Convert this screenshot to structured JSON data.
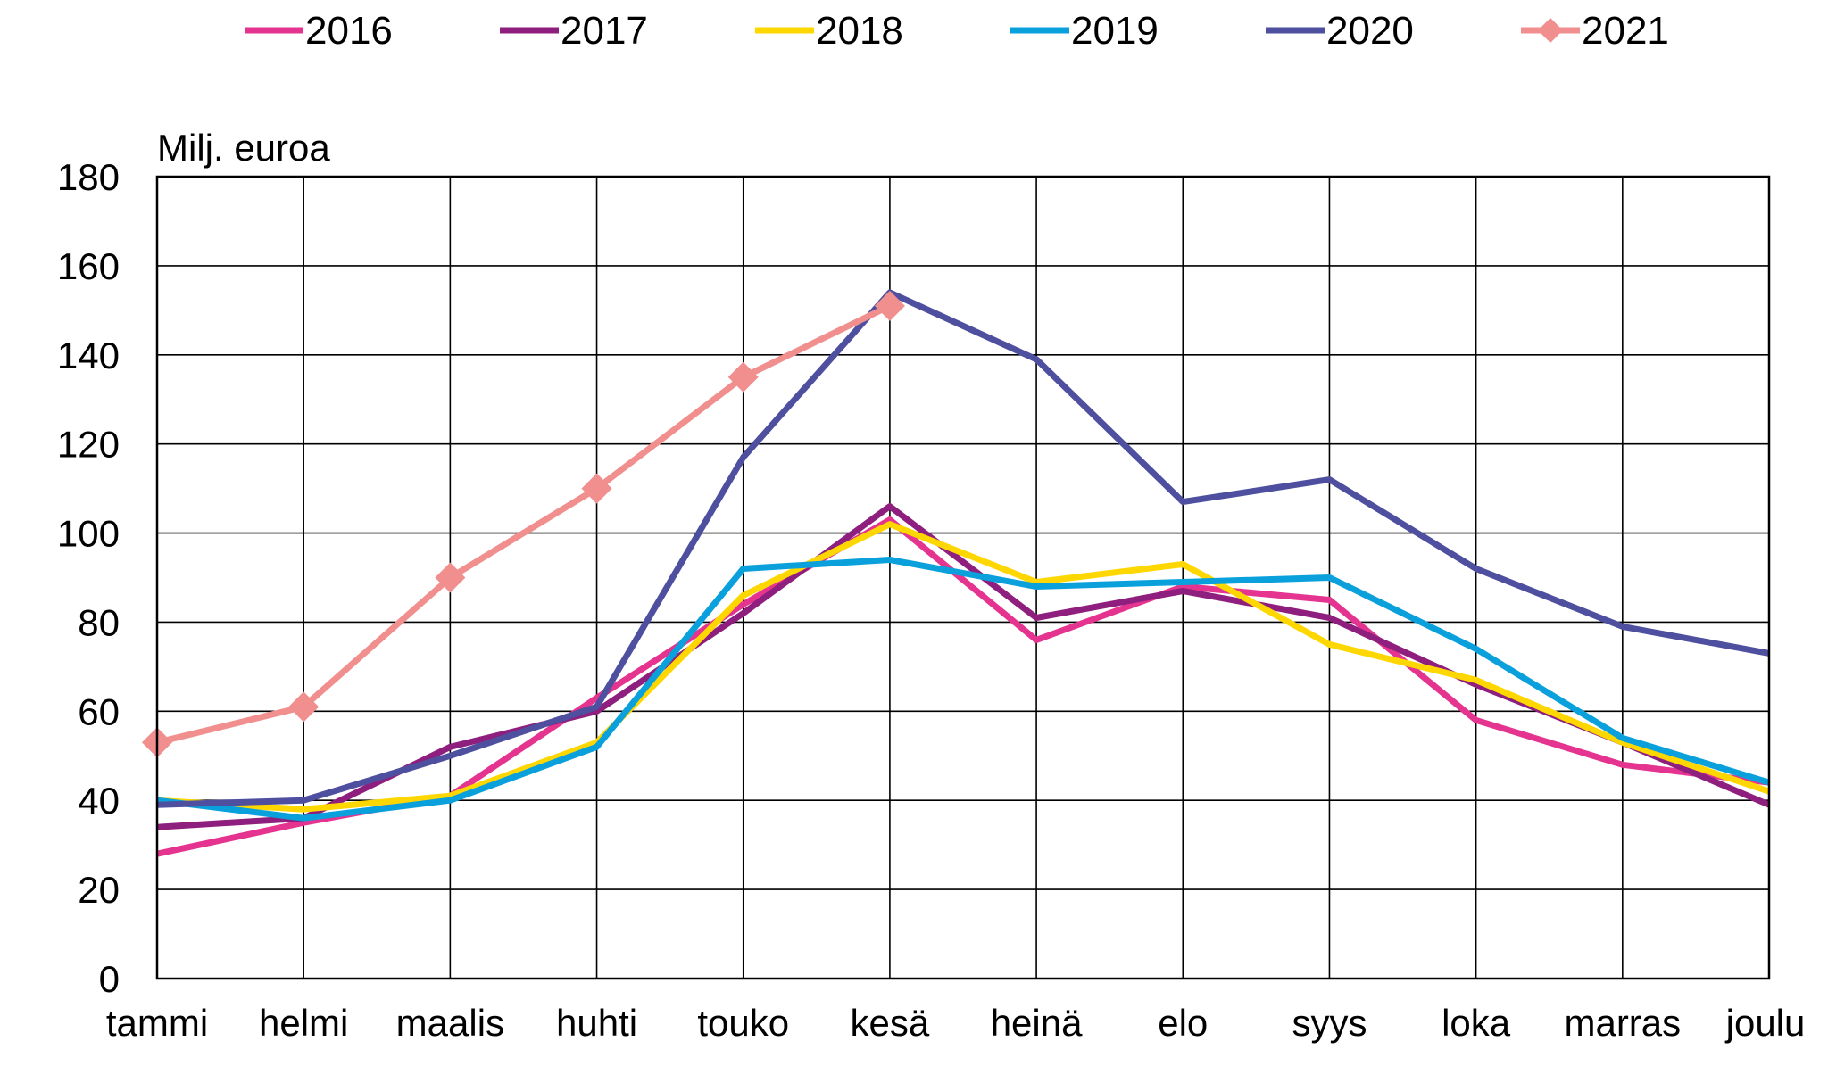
{
  "chart_data": {
    "type": "line",
    "ylabel": "Milj. euroa",
    "ylim": [
      0,
      180
    ],
    "ytick_step": 20,
    "grid": true,
    "legend_position": "top",
    "categories": [
      "tammi",
      "helmi",
      "maalis",
      "huhti",
      "touko",
      "kesä",
      "heinä",
      "elo",
      "syys",
      "loka",
      "marras",
      "joulu"
    ],
    "series": [
      {
        "name": "2016",
        "color": "#e5348f",
        "marker": "none",
        "values": [
          28,
          35,
          41,
          63,
          84,
          103,
          76,
          88,
          85,
          58,
          48,
          44
        ]
      },
      {
        "name": "2017",
        "color": "#8e1f7e",
        "marker": "none",
        "values": [
          34,
          36,
          52,
          60,
          82,
          106,
          81,
          87,
          81,
          66,
          53,
          39
        ]
      },
      {
        "name": "2018",
        "color": "#ffd700",
        "marker": "none",
        "values": [
          40,
          38,
          41,
          53,
          86,
          102,
          89,
          93,
          75,
          67,
          53,
          42
        ]
      },
      {
        "name": "2019",
        "color": "#0aa0dc",
        "marker": "none",
        "values": [
          40,
          36,
          40,
          52,
          92,
          94,
          88,
          89,
          90,
          74,
          54,
          44
        ]
      },
      {
        "name": "2020",
        "color": "#4e4f9f",
        "marker": "none",
        "values": [
          39,
          40,
          50,
          61,
          117,
          154,
          139,
          107,
          112,
          92,
          79,
          73
        ]
      },
      {
        "name": "2021",
        "color": "#f18e8e",
        "marker": "diamond",
        "values": [
          53,
          61,
          90,
          110,
          135,
          151,
          null,
          null,
          null,
          null,
          null,
          null
        ]
      }
    ]
  }
}
